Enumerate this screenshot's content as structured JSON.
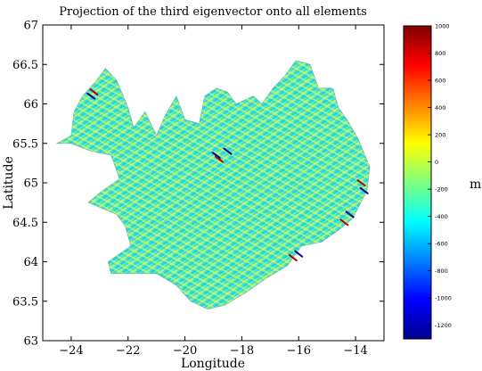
{
  "chart_data": {
    "type": "heatmap",
    "title": "Projection of the third eigenvector onto all elements",
    "xlabel": "Longitude",
    "ylabel": "Latitude",
    "xlim": [
      -25,
      -13
    ],
    "ylim": [
      63,
      67
    ],
    "xticks": [
      -24,
      -22,
      -20,
      -18,
      -16,
      -14
    ],
    "yticks": [
      63,
      63.5,
      64,
      64.5,
      65,
      65.5,
      66,
      66.5,
      67
    ],
    "grid": false,
    "colorbar": {
      "label": "m",
      "range": [
        -1300,
        1000
      ],
      "ticks": [
        1000,
        800,
        600,
        400,
        200,
        0,
        -200,
        -400,
        -600,
        -800,
        -1000,
        -1200
      ],
      "colormap": "jet"
    },
    "region_outline_lonlat": [
      [
        -24.5,
        65.5
      ],
      [
        -24.0,
        65.6
      ],
      [
        -23.9,
        65.9
      ],
      [
        -23.6,
        66.1
      ],
      [
        -23.1,
        66.3
      ],
      [
        -22.8,
        66.45
      ],
      [
        -22.4,
        66.3
      ],
      [
        -22.0,
        65.95
      ],
      [
        -21.8,
        65.7
      ],
      [
        -21.4,
        65.9
      ],
      [
        -21.0,
        65.6
      ],
      [
        -20.7,
        65.85
      ],
      [
        -20.3,
        66.1
      ],
      [
        -20.0,
        65.8
      ],
      [
        -19.5,
        65.75
      ],
      [
        -19.3,
        66.1
      ],
      [
        -18.9,
        66.2
      ],
      [
        -18.5,
        66.15
      ],
      [
        -18.2,
        66.0
      ],
      [
        -17.6,
        66.1
      ],
      [
        -17.3,
        66.0
      ],
      [
        -16.9,
        66.2
      ],
      [
        -16.5,
        66.35
      ],
      [
        -16.1,
        66.55
      ],
      [
        -15.6,
        66.5
      ],
      [
        -15.3,
        66.2
      ],
      [
        -14.8,
        66.2
      ],
      [
        -14.6,
        65.95
      ],
      [
        -14.3,
        65.8
      ],
      [
        -13.9,
        65.55
      ],
      [
        -13.5,
        65.2
      ],
      [
        -13.6,
        64.9
      ],
      [
        -14.1,
        64.55
      ],
      [
        -14.6,
        64.4
      ],
      [
        -15.2,
        64.25
      ],
      [
        -15.9,
        64.2
      ],
      [
        -16.4,
        63.95
      ],
      [
        -17.1,
        63.8
      ],
      [
        -17.9,
        63.6
      ],
      [
        -18.6,
        63.45
      ],
      [
        -19.2,
        63.4
      ],
      [
        -19.8,
        63.5
      ],
      [
        -20.3,
        63.7
      ],
      [
        -21.0,
        63.85
      ],
      [
        -21.7,
        63.85
      ],
      [
        -22.6,
        63.85
      ],
      [
        -22.7,
        64.0
      ],
      [
        -21.9,
        64.2
      ],
      [
        -22.1,
        64.45
      ],
      [
        -22.4,
        64.6
      ],
      [
        -23.4,
        64.75
      ],
      [
        -22.9,
        64.9
      ],
      [
        -22.3,
        65.05
      ],
      [
        -22.6,
        65.35
      ],
      [
        -23.3,
        65.4
      ],
      [
        -24.0,
        65.5
      ],
      [
        -24.5,
        65.5
      ]
    ],
    "value_distribution": {
      "dominant_range": [
        -600,
        300
      ],
      "low_extremes_near": [
        [
          -18.9,
          65.35
        ],
        [
          -18.5,
          65.4
        ],
        [
          -23.3,
          66.1
        ],
        [
          -13.7,
          64.9
        ],
        [
          -14.2,
          64.6
        ],
        [
          -16.0,
          64.1
        ]
      ],
      "high_extremes_near": [
        [
          -13.8,
          65.0
        ],
        [
          -18.8,
          65.3
        ],
        [
          -23.2,
          66.15
        ],
        [
          -14.4,
          64.5
        ],
        [
          -16.2,
          64.05
        ]
      ]
    },
    "colors": {
      "background": "#ffffff",
      "dominant_fill": "#3ae6c8",
      "stripe_light": "#b6f57a",
      "stripe_cyan": "#12d2f2",
      "stripe_blue": "#2f7bff",
      "extreme_low": "#00009c",
      "extreme_high": "#b00000"
    }
  }
}
